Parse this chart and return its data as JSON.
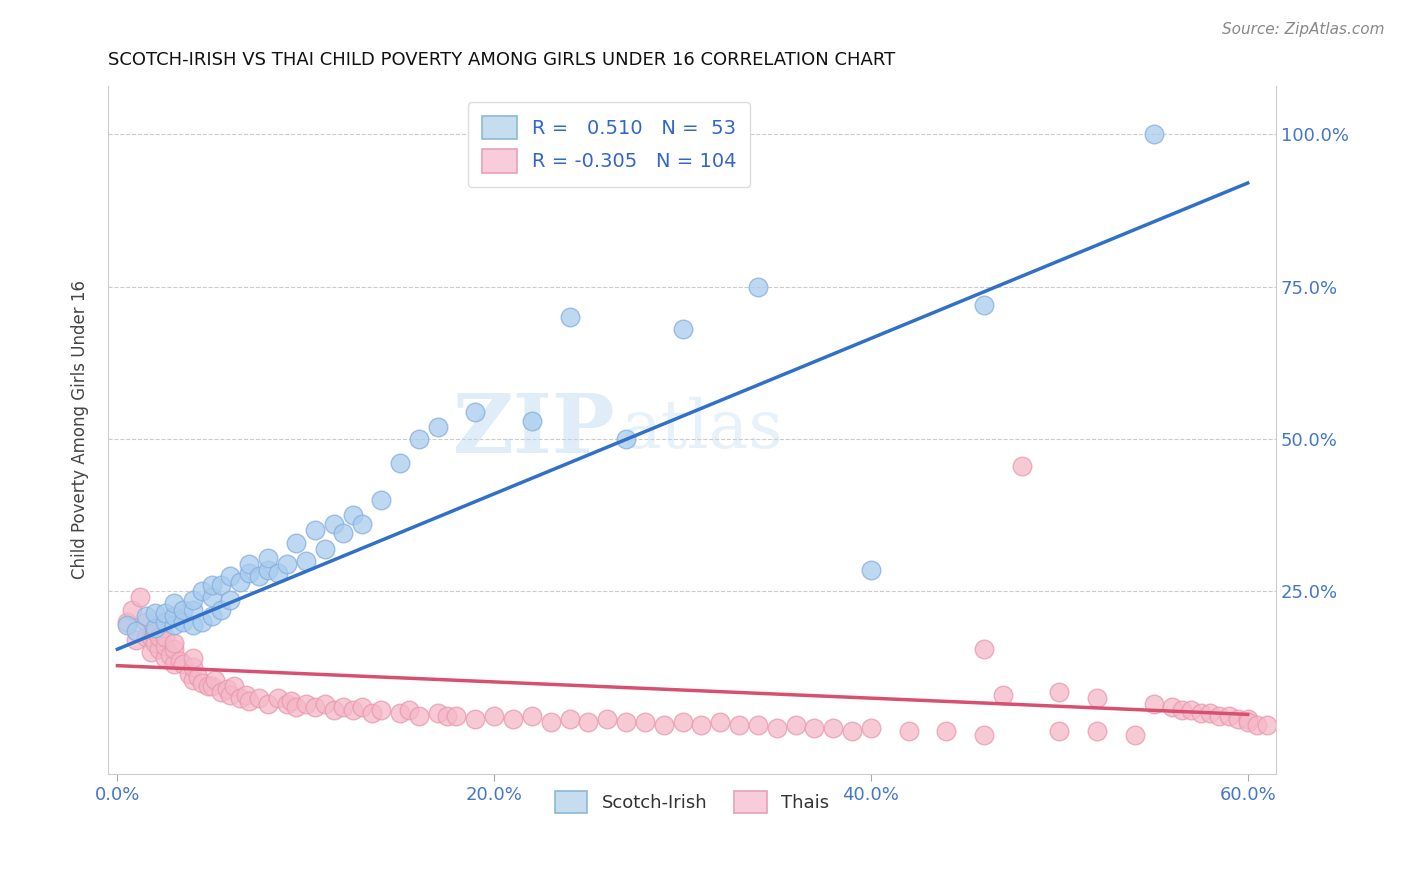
{
  "title": "SCOTCH-IRISH VS THAI CHILD POVERTY AMONG GIRLS UNDER 16 CORRELATION CHART",
  "source": "Source: ZipAtlas.com",
  "ylabel": "Child Poverty Among Girls Under 16",
  "xlim": [
    -0.005,
    0.615
  ],
  "ylim": [
    -0.05,
    1.08
  ],
  "xtick_labels": [
    "0.0%",
    "",
    "20.0%",
    "",
    "40.0%",
    "",
    "60.0%"
  ],
  "xtick_vals": [
    0.0,
    0.1,
    0.2,
    0.3,
    0.4,
    0.5,
    0.6
  ],
  "ytick_labels": [
    "25.0%",
    "50.0%",
    "75.0%",
    "100.0%"
  ],
  "ytick_vals": [
    0.25,
    0.5,
    0.75,
    1.0
  ],
  "scotch_irish_R": 0.51,
  "scotch_irish_N": 53,
  "thai_R": -0.305,
  "thai_N": 104,
  "blue_scatter_color": "#A8CCEE",
  "blue_scatter_edge": "#85AEDD",
  "pink_scatter_color": "#F5B8C8",
  "pink_scatter_edge": "#E898B0",
  "blue_line_color": "#3070C8",
  "pink_line_color": "#D85070",
  "legend_blue_fill": "#C5DDEE",
  "legend_pink_fill": "#F8CCDA",
  "legend_blue_edge": "#8BBAD8",
  "legend_pink_edge": "#E8A0B8",
  "watermark": "ZIPatlas",
  "blue_line_x0": 0.0,
  "blue_line_y0": 0.155,
  "blue_line_x1": 0.6,
  "blue_line_y1": 0.92,
  "pink_line_x0": 0.0,
  "pink_line_y0": 0.128,
  "pink_line_x1": 0.6,
  "pink_line_y1": 0.048,
  "scotch_irish_x": [
    0.005,
    0.01,
    0.015,
    0.02,
    0.02,
    0.025,
    0.025,
    0.03,
    0.03,
    0.03,
    0.035,
    0.035,
    0.04,
    0.04,
    0.04,
    0.045,
    0.045,
    0.05,
    0.05,
    0.05,
    0.055,
    0.055,
    0.06,
    0.06,
    0.065,
    0.07,
    0.07,
    0.075,
    0.08,
    0.08,
    0.085,
    0.09,
    0.095,
    0.1,
    0.105,
    0.11,
    0.115,
    0.12,
    0.125,
    0.13,
    0.14,
    0.15,
    0.16,
    0.17,
    0.19,
    0.22,
    0.24,
    0.27,
    0.3,
    0.34,
    0.4,
    0.46,
    0.55
  ],
  "scotch_irish_y": [
    0.195,
    0.185,
    0.21,
    0.19,
    0.215,
    0.2,
    0.215,
    0.195,
    0.21,
    0.23,
    0.2,
    0.22,
    0.195,
    0.22,
    0.235,
    0.2,
    0.25,
    0.21,
    0.24,
    0.26,
    0.22,
    0.26,
    0.235,
    0.275,
    0.265,
    0.28,
    0.295,
    0.275,
    0.285,
    0.305,
    0.28,
    0.295,
    0.33,
    0.3,
    0.35,
    0.32,
    0.36,
    0.345,
    0.375,
    0.36,
    0.4,
    0.46,
    0.5,
    0.52,
    0.545,
    0.53,
    0.7,
    0.5,
    0.68,
    0.75,
    0.285,
    0.72,
    1.0
  ],
  "thai_x": [
    0.005,
    0.008,
    0.01,
    0.012,
    0.015,
    0.015,
    0.018,
    0.018,
    0.02,
    0.02,
    0.022,
    0.022,
    0.025,
    0.025,
    0.025,
    0.028,
    0.03,
    0.03,
    0.03,
    0.033,
    0.035,
    0.038,
    0.04,
    0.04,
    0.04,
    0.043,
    0.045,
    0.048,
    0.05,
    0.052,
    0.055,
    0.058,
    0.06,
    0.062,
    0.065,
    0.068,
    0.07,
    0.075,
    0.08,
    0.085,
    0.09,
    0.092,
    0.095,
    0.1,
    0.105,
    0.11,
    0.115,
    0.12,
    0.125,
    0.13,
    0.135,
    0.14,
    0.15,
    0.155,
    0.16,
    0.17,
    0.175,
    0.18,
    0.19,
    0.2,
    0.21,
    0.22,
    0.23,
    0.24,
    0.25,
    0.26,
    0.27,
    0.28,
    0.29,
    0.3,
    0.31,
    0.32,
    0.33,
    0.34,
    0.35,
    0.36,
    0.37,
    0.38,
    0.39,
    0.4,
    0.42,
    0.44,
    0.46,
    0.47,
    0.48,
    0.5,
    0.52,
    0.54,
    0.46,
    0.5,
    0.52,
    0.55,
    0.56,
    0.565,
    0.57,
    0.575,
    0.58,
    0.585,
    0.59,
    0.595,
    0.6,
    0.6,
    0.605,
    0.61
  ],
  "thai_y": [
    0.2,
    0.22,
    0.17,
    0.24,
    0.2,
    0.175,
    0.15,
    0.175,
    0.165,
    0.185,
    0.155,
    0.175,
    0.14,
    0.16,
    0.175,
    0.145,
    0.13,
    0.155,
    0.165,
    0.135,
    0.13,
    0.115,
    0.105,
    0.125,
    0.14,
    0.11,
    0.1,
    0.095,
    0.095,
    0.105,
    0.085,
    0.09,
    0.08,
    0.095,
    0.075,
    0.08,
    0.07,
    0.075,
    0.065,
    0.075,
    0.065,
    0.07,
    0.06,
    0.065,
    0.06,
    0.065,
    0.055,
    0.06,
    0.055,
    0.06,
    0.05,
    0.055,
    0.05,
    0.055,
    0.045,
    0.05,
    0.045,
    0.045,
    0.04,
    0.045,
    0.04,
    0.045,
    0.035,
    0.04,
    0.035,
    0.04,
    0.035,
    0.035,
    0.03,
    0.035,
    0.03,
    0.035,
    0.03,
    0.03,
    0.025,
    0.03,
    0.025,
    0.025,
    0.02,
    0.025,
    0.02,
    0.02,
    0.015,
    0.08,
    0.455,
    0.02,
    0.02,
    0.015,
    0.155,
    0.085,
    0.075,
    0.065,
    0.06,
    0.055,
    0.055,
    0.05,
    0.05,
    0.045,
    0.045,
    0.04,
    0.04,
    0.035,
    0.03,
    0.03
  ]
}
